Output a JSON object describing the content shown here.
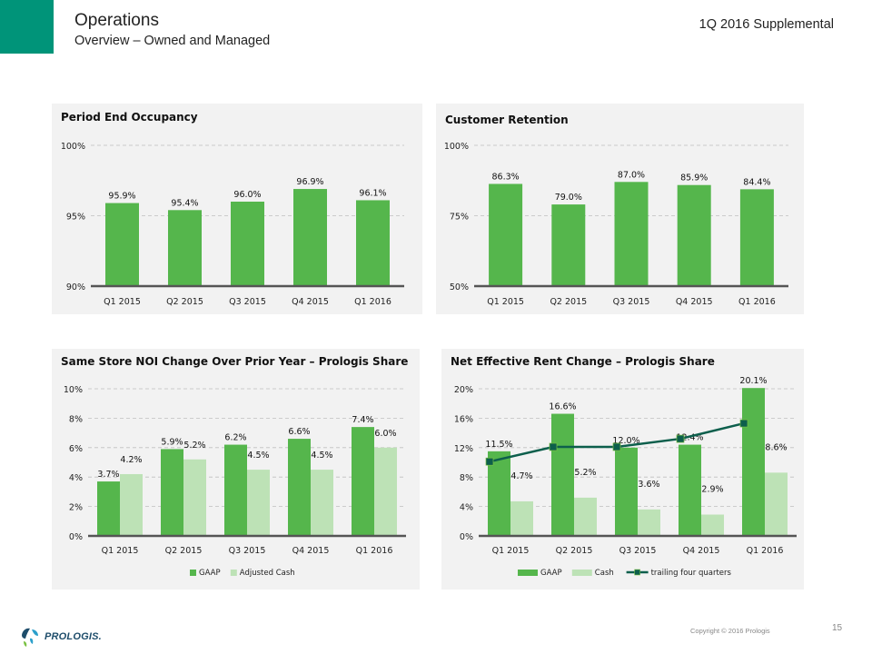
{
  "header": {
    "title": "Operations",
    "subtitle": "Overview – Owned and Managed",
    "supplemental": "1Q 2016 Supplemental"
  },
  "footer": {
    "copyright": "Copyright © 2016 Prologis",
    "page_number": "15",
    "logo_text": "PROLOGIS."
  },
  "colors": {
    "brand_teal": "#009479",
    "gaap_green": "#55b64c",
    "cash_green": "#bde2b6",
    "trailing_line": "#0d5f4c",
    "panel_bg": "#f2f2f2"
  },
  "chart_data": [
    {
      "id": "occupancy",
      "type": "bar",
      "title": "Period End Occupancy",
      "categories": [
        "Q1 2015",
        "Q2 2015",
        "Q3 2015",
        "Q4 2015",
        "Q1 2016"
      ],
      "series": [
        {
          "name": "Occupancy",
          "values": [
            95.9,
            95.4,
            96.0,
            96.9,
            96.1
          ],
          "labels": [
            "95.9%",
            "95.4%",
            "96.0%",
            "96.9%",
            "96.1%"
          ]
        }
      ],
      "ylim": [
        90,
        100
      ],
      "yticks": [
        90,
        95,
        100
      ],
      "ytick_labels": [
        "90%",
        "95%",
        "100%"
      ],
      "grid": true,
      "legend": null
    },
    {
      "id": "retention",
      "type": "bar",
      "title": "Customer Retention",
      "categories": [
        "Q1 2015",
        "Q2 2015",
        "Q3 2015",
        "Q4 2015",
        "Q1 2016"
      ],
      "series": [
        {
          "name": "Retention",
          "values": [
            86.3,
            79.0,
            87.0,
            85.9,
            84.4
          ],
          "labels": [
            "86.3%",
            "79.0%",
            "87.0%",
            "85.9%",
            "84.4%"
          ]
        }
      ],
      "ylim": [
        50,
        100
      ],
      "yticks": [
        50,
        75,
        100
      ],
      "ytick_labels": [
        "50%",
        "75%",
        "100%"
      ],
      "grid": true,
      "legend": null
    },
    {
      "id": "noi",
      "type": "bar",
      "title": "Same Store NOI Change Over Prior Year – Prologis Share",
      "categories": [
        "Q1 2015",
        "Q2 2015",
        "Q3 2015",
        "Q4 2015",
        "Q1 2016"
      ],
      "series": [
        {
          "name": "GAAP",
          "values": [
            3.7,
            5.9,
            6.2,
            6.6,
            7.4
          ],
          "labels": [
            "3.7%",
            "5.9%",
            "6.2%",
            "6.6%",
            "7.4%"
          ]
        },
        {
          "name": "Adjusted Cash",
          "values": [
            4.2,
            5.2,
            4.5,
            4.5,
            6.0
          ],
          "labels": [
            "4.2%",
            "5.2%",
            "4.5%",
            "4.5%",
            "6.0%"
          ]
        }
      ],
      "ylim": [
        0,
        10
      ],
      "yticks": [
        0,
        2,
        4,
        6,
        8,
        10
      ],
      "ytick_labels": [
        "0%",
        "2%",
        "4%",
        "6%",
        "8%",
        "10%"
      ],
      "grid": true,
      "legend": "bottom"
    },
    {
      "id": "rent",
      "type": "bar",
      "title": "Net Effective Rent Change – Prologis Share",
      "categories": [
        "Q1 2015",
        "Q2 2015",
        "Q3 2015",
        "Q4 2015",
        "Q1 2016"
      ],
      "series": [
        {
          "name": "GAAP",
          "values": [
            11.5,
            16.6,
            12.0,
            12.4,
            20.1
          ],
          "labels": [
            "11.5%",
            "16.6%",
            "12.0%",
            "12.4%",
            "20.1%"
          ]
        },
        {
          "name": "Cash",
          "values": [
            4.7,
            5.2,
            3.6,
            2.9,
            8.6
          ],
          "labels": [
            "4.7%",
            "5.2%",
            "3.6%",
            "2.9%",
            "8.6%"
          ]
        }
      ],
      "line_series": {
        "name": "trailing four quarters",
        "values": [
          10.1,
          12.1,
          12.1,
          13.2,
          15.3
        ]
      },
      "ylim": [
        0,
        20
      ],
      "yticks": [
        0,
        4,
        8,
        12,
        16,
        20
      ],
      "ytick_labels": [
        "0%",
        "4%",
        "8%",
        "12%",
        "16%",
        "20%"
      ],
      "grid": true,
      "legend": "bottom"
    }
  ]
}
